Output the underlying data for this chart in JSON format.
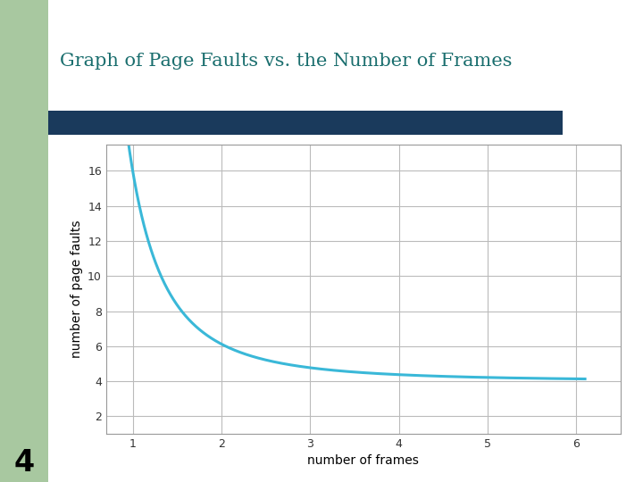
{
  "title": "Graph of Page Faults vs. the Number of Frames",
  "title_color": "#1a6e6e",
  "xlabel": "number of frames",
  "ylabel": "number of page faults",
  "xlim": [
    0.7,
    6.5
  ],
  "ylim": [
    1.0,
    17.5
  ],
  "xticks": [
    1,
    2,
    3,
    4,
    5,
    6
  ],
  "yticks": [
    2,
    4,
    6,
    8,
    10,
    12,
    14,
    16
  ],
  "line_color": "#3ab8d8",
  "line_width": 2.2,
  "grid_color": "#bbbbbb",
  "background_color": "#ffffff",
  "outer_bg": "#ffffff",
  "left_bar_color": "#a8c8a0",
  "header_bar_color": "#1a3a5c",
  "slide_number": "4",
  "curve_x_start": 0.78,
  "curve_asymptote": 4.0,
  "curve_scale": 12.0,
  "curve_decay": 2.5
}
